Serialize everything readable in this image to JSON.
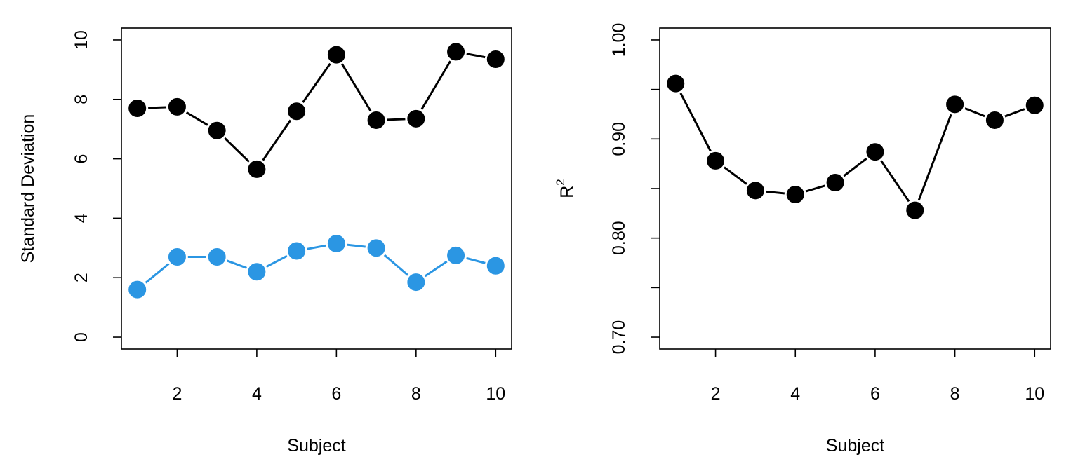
{
  "chart_data": [
    {
      "type": "line",
      "title": "",
      "xlabel": "Subject",
      "ylabel": "Standard Deviation",
      "xlim": [
        0.6,
        10.4
      ],
      "ylim": [
        -0.4,
        10.4
      ],
      "xticks": [
        2,
        4,
        6,
        8,
        10
      ],
      "xtick_labels": [
        "2",
        "4",
        "6",
        "8",
        "10"
      ],
      "yticks": [
        0,
        2,
        4,
        6,
        8,
        10
      ],
      "ytick_labels": [
        "0",
        "2",
        "4",
        "6",
        "8",
        "10"
      ],
      "grid": false,
      "x": [
        1,
        2,
        3,
        4,
        5,
        6,
        7,
        8,
        9,
        10
      ],
      "series": [
        {
          "color": "#000000",
          "values": [
            7.7,
            7.75,
            6.95,
            5.65,
            7.6,
            9.5,
            7.3,
            7.35,
            9.6,
            9.35
          ]
        },
        {
          "color": "#2B96E3",
          "values": [
            1.6,
            2.7,
            2.7,
            2.2,
            2.9,
            3.15,
            3.0,
            1.85,
            2.75,
            2.4
          ]
        }
      ]
    },
    {
      "type": "line",
      "title": "",
      "xlabel": "Subject",
      "ylabel": "R",
      "ylabel_superscript": "2",
      "xlim": [
        0.6,
        10.4
      ],
      "ylim": [
        0.688,
        1.012
      ],
      "xticks": [
        2,
        4,
        6,
        8,
        10
      ],
      "xtick_labels": [
        "2",
        "4",
        "6",
        "8",
        "10"
      ],
      "yticks": [
        0.7,
        0.75,
        0.8,
        0.85,
        0.9,
        0.95,
        1.0
      ],
      "ytick_labels": [
        "0.70",
        "",
        "0.80",
        "",
        "0.90",
        "",
        "1.00"
      ],
      "grid": false,
      "x": [
        1,
        2,
        3,
        4,
        5,
        6,
        7,
        8,
        9,
        10
      ],
      "series": [
        {
          "color": "#000000",
          "values": [
            0.956,
            0.878,
            0.848,
            0.844,
            0.856,
            0.887,
            0.828,
            0.935,
            0.919,
            0.934
          ]
        }
      ]
    }
  ]
}
